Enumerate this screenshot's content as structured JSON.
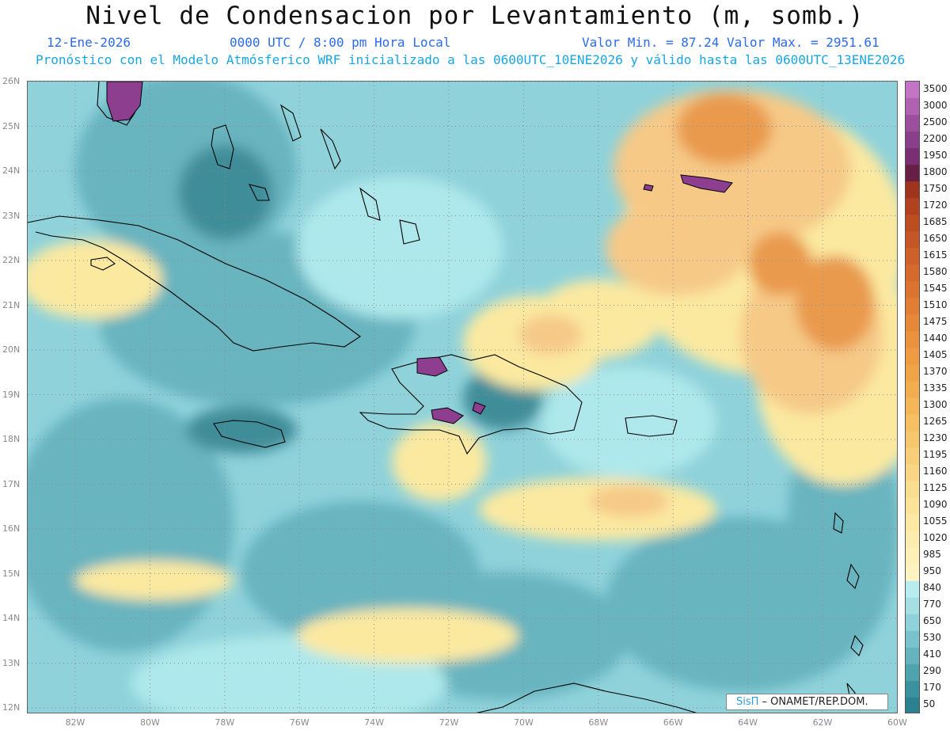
{
  "header": {
    "title": "Nivel de Condensacion por Levantamiento (m, somb.)",
    "date": "12-Ene-2026",
    "time": "0000 UTC / 8:00 pm Hora Local",
    "min_max": "Valor Min. = 87.24  Valor Max. = 2951.61",
    "subtitle": "Pronóstico con el Modelo Atmósferico WRF inicializado a las 0600UTC_10ENE2026 y válido hasta las  0600UTC_13ENE2026"
  },
  "map": {
    "lat_labels": [
      "26N",
      "25N",
      "24N",
      "23N",
      "22N",
      "21N",
      "20N",
      "19N",
      "18N",
      "17N",
      "16N",
      "15N",
      "14N",
      "13N",
      "12N"
    ],
    "lon_labels": [
      "82W",
      "80W",
      "78W",
      "76W",
      "74W",
      "72W",
      "70W",
      "68W",
      "66W",
      "64W",
      "62W",
      "60W"
    ],
    "colors": {
      "very_low": "#3f8d9a",
      "low": "#68b4bf",
      "mid_low": "#8fd2da",
      "light": "#aee8ec",
      "yellow": "#fbe9a0",
      "peach": "#f6c987",
      "orange": "#e99a4d",
      "dark_orange": "#d4772f",
      "purple": "#8e3e8f",
      "coast": "#000000"
    }
  },
  "legend": {
    "values": [
      "3500",
      "3000",
      "2500",
      "2200",
      "1950",
      "1800",
      "1750",
      "1720",
      "1685",
      "1650",
      "1615",
      "1580",
      "1545",
      "1510",
      "1475",
      "1440",
      "1405",
      "1370",
      "1335",
      "1300",
      "1265",
      "1230",
      "1195",
      "1160",
      "1125",
      "1090",
      "1055",
      "1020",
      "985",
      "950",
      "840",
      "770",
      "650",
      "530",
      "410",
      "290",
      "170",
      "50"
    ],
    "colors": [
      "#c574c5",
      "#b061b0",
      "#9c4f9c",
      "#8a3f8a",
      "#7a2f73",
      "#671f45",
      "#a0331e",
      "#b2421f",
      "#bd4c20",
      "#c65626",
      "#cf602a",
      "#d66a2d",
      "#dc7430",
      "#e17e34",
      "#e68838",
      "#ea923d",
      "#ee9b42",
      "#f0a347",
      "#f2ad4f",
      "#f4b658",
      "#f6bf62",
      "#f7c76d",
      "#f8cf78",
      "#f9d683",
      "#fade8f",
      "#fbe49a",
      "#fbe9a4",
      "#fcedae",
      "#fdf1b8",
      "#fdf4c2",
      "#b9ecef",
      "#a4dfe4",
      "#8fd2da",
      "#79c3cc",
      "#64b3bd",
      "#4fa3ae",
      "#3b929f",
      "#2b8191"
    ]
  },
  "credit": {
    "sis": "SisΠ",
    "rest": " –  ONAMET/REP.DOM."
  }
}
